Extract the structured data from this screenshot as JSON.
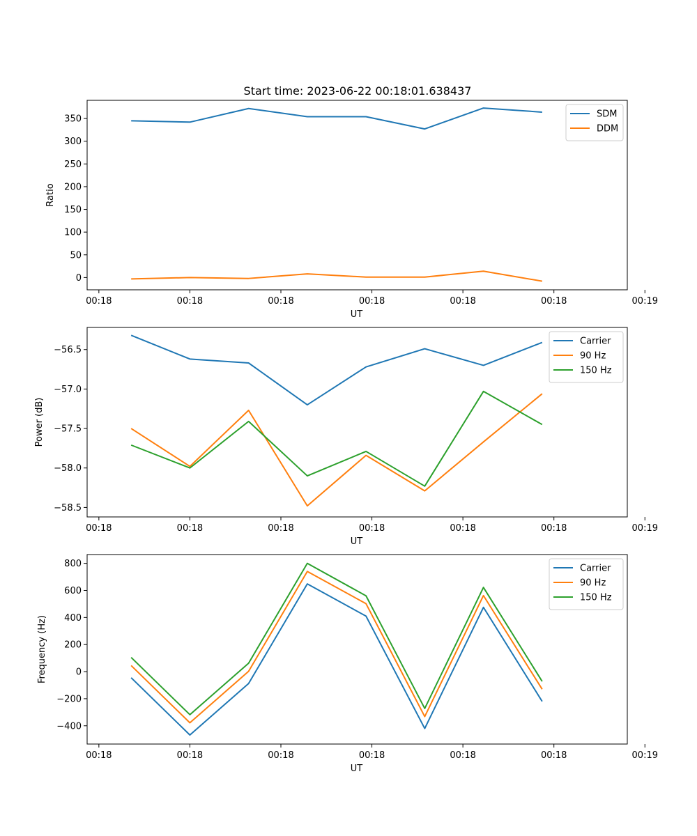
{
  "figure": {
    "title": "Start time: 2023-06-22 00:18:01.638437"
  },
  "chart_data": [
    {
      "type": "line",
      "title": "Start time: 2023-06-22 00:18:01.638437",
      "xlabel": "UT",
      "ylabel": "Ratio",
      "x_sample_index": [
        0,
        1,
        2,
        3,
        4,
        5,
        6,
        7
      ],
      "xlim": [
        -0.75,
        8.45
      ],
      "x_ticks": [
        -0.55,
        1,
        2.55,
        4.1,
        5.65,
        7.2,
        8.75
      ],
      "x_tick_labels": [
        "00:18",
        "00:18",
        "00:18",
        "00:18",
        "00:18",
        "00:18",
        "00:19"
      ],
      "ylim": [
        -27,
        390
      ],
      "y_ticks": [
        0,
        50,
        100,
        150,
        200,
        250,
        300,
        350
      ],
      "y_tick_labels": [
        "0",
        "50",
        "100",
        "150",
        "200",
        "250",
        "300",
        "350"
      ],
      "grid": false,
      "legend": "top-right",
      "series": [
        {
          "name": "SDM",
          "color": "#1f77b4",
          "values": [
            345,
            342,
            372,
            354,
            354,
            327,
            373,
            364
          ]
        },
        {
          "name": "DDM",
          "color": "#ff7f0e",
          "values": [
            -3,
            0,
            -2,
            8,
            1,
            1,
            14,
            -8
          ]
        }
      ]
    },
    {
      "type": "line",
      "xlabel": "UT",
      "ylabel": "Power (dB)",
      "x_sample_index": [
        0,
        1,
        2,
        3,
        4,
        5,
        6,
        7
      ],
      "xlim": [
        -0.75,
        8.45
      ],
      "x_ticks": [
        -0.55,
        1,
        2.55,
        4.1,
        5.65,
        7.2,
        8.75
      ],
      "x_tick_labels": [
        "00:18",
        "00:18",
        "00:18",
        "00:18",
        "00:18",
        "00:18",
        "00:19"
      ],
      "ylim": [
        -58.62,
        -56.22
      ],
      "y_ticks": [
        -58.5,
        -58.0,
        -57.5,
        -57.0,
        -56.5
      ],
      "y_tick_labels": [
        "−58.5",
        "−58.0",
        "−57.5",
        "−57.0",
        "−56.5"
      ],
      "grid": false,
      "legend": "top-right",
      "series": [
        {
          "name": "Carrier",
          "color": "#1f77b4",
          "values": [
            -56.32,
            -56.62,
            -56.67,
            -57.2,
            -56.72,
            -56.49,
            -56.7,
            -56.41
          ]
        },
        {
          "name": "90 Hz",
          "color": "#ff7f0e",
          "values": [
            -57.5,
            -57.98,
            -57.27,
            -58.48,
            -57.84,
            -58.29,
            -57.67,
            -57.06
          ]
        },
        {
          "name": "150 Hz",
          "color": "#2ca02c",
          "values": [
            -57.71,
            -58.0,
            -57.41,
            -58.1,
            -57.79,
            -58.23,
            -57.03,
            -57.45
          ]
        }
      ]
    },
    {
      "type": "line",
      "xlabel": "UT",
      "ylabel": "Frequency (Hz)",
      "x_sample_index": [
        0,
        1,
        2,
        3,
        4,
        5,
        6,
        7
      ],
      "xlim": [
        -0.75,
        8.45
      ],
      "x_ticks": [
        -0.55,
        1,
        2.55,
        4.1,
        5.65,
        7.2,
        8.75
      ],
      "x_tick_labels": [
        "00:18",
        "00:18",
        "00:18",
        "00:18",
        "00:18",
        "00:18",
        "00:19"
      ],
      "ylim": [
        -535,
        865
      ],
      "y_ticks": [
        -400,
        -200,
        0,
        200,
        400,
        600,
        800
      ],
      "y_tick_labels": [
        "−400",
        "−200",
        "0",
        "200",
        "400",
        "600",
        "800"
      ],
      "grid": false,
      "legend": "top-right",
      "series": [
        {
          "name": "Carrier",
          "color": "#1f77b4",
          "values": [
            -45,
            -468,
            -88,
            648,
            410,
            -420,
            475,
            -220
          ]
        },
        {
          "name": "90 Hz",
          "color": "#ff7f0e",
          "values": [
            45,
            -378,
            2,
            740,
            502,
            -332,
            562,
            -130
          ]
        },
        {
          "name": "150 Hz",
          "color": "#2ca02c",
          "values": [
            105,
            -318,
            62,
            800,
            560,
            -272,
            622,
            -72
          ]
        }
      ]
    }
  ]
}
